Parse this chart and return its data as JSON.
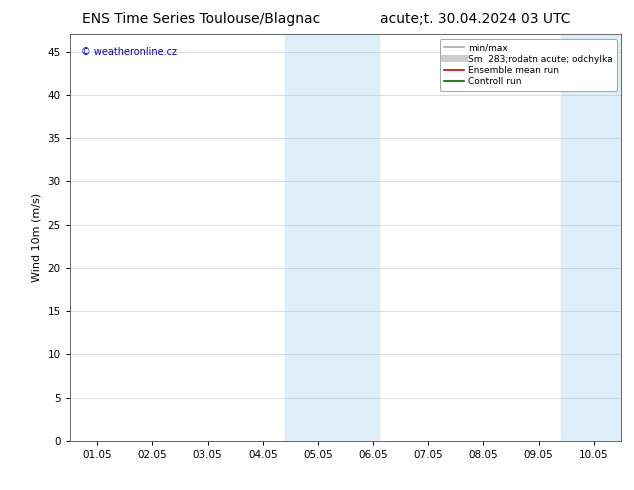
{
  "title_left": "ENS Time Series Toulouse/Blagnac",
  "title_right": "acute;t. 30.04.2024 03 UTC",
  "ylabel": "Wind 10m (m/s)",
  "ylim": [
    0,
    47
  ],
  "yticks": [
    0,
    5,
    10,
    15,
    20,
    25,
    30,
    35,
    40,
    45
  ],
  "xtick_labels": [
    "01.05",
    "02.05",
    "03.05",
    "04.05",
    "05.05",
    "06.05",
    "07.05",
    "08.05",
    "09.05",
    "10.05"
  ],
  "xtick_positions": [
    0,
    1,
    2,
    3,
    4,
    5,
    6,
    7,
    8,
    9
  ],
  "shade_bands": [
    {
      "xmin": 3.4,
      "xmax": 5.1
    },
    {
      "xmin": 8.4,
      "xmax": 9.6
    }
  ],
  "shade_color": "#ddeef8",
  "bg_color": "#ffffff",
  "plot_bg_color": "#ffffff",
  "watermark_text": "© weatheronline.cz",
  "watermark_color": "#0000cc",
  "legend_entries": [
    {
      "label": "min/max",
      "color": "#aaaaaa",
      "lw": 1.2,
      "style": "solid"
    },
    {
      "label": "Sm  283;rodatn acute; odchylka",
      "color": "#cccccc",
      "lw": 5,
      "style": "solid"
    },
    {
      "label": "Ensemble mean run",
      "color": "#cc0000",
      "lw": 1.2,
      "style": "solid"
    },
    {
      "label": "Controll run",
      "color": "#006600",
      "lw": 1.2,
      "style": "solid"
    }
  ],
  "grid_color": "#bbbbbb",
  "grid_alpha": 0.6,
  "title_fontsize": 10,
  "axis_fontsize": 8,
  "tick_fontsize": 7.5,
  "legend_fontsize": 6.5,
  "watermark_fontsize": 7
}
